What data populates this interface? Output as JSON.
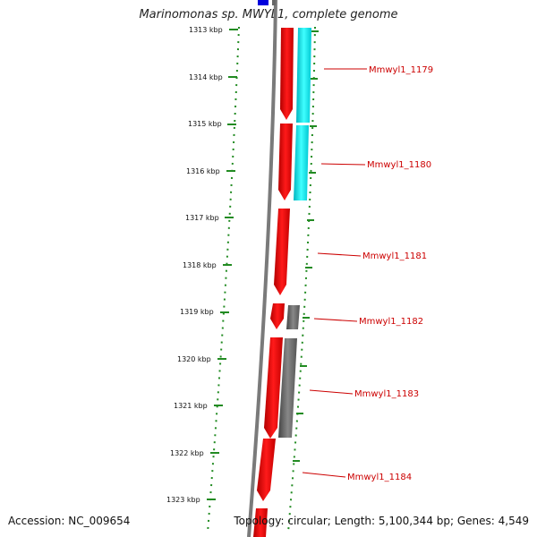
{
  "title": "Marinomonas sp. MWYL1, complete genome",
  "footer": {
    "accession": "Accession: NC_009654",
    "topology": "Topology: circular; Length: 5,100,344 bp; Genes: 4,549"
  },
  "ticks": [
    "1313 kbp",
    "1314 kbp",
    "1315 kbp",
    "1316 kbp",
    "1317 kbp",
    "1318 kbp",
    "1319 kbp",
    "1320 kbp",
    "1321 kbp",
    "1322 kbp",
    "1323 kbp"
  ],
  "genes": [
    {
      "label": "Mmwyl1_1179",
      "color": "#ff0000"
    },
    {
      "label": "Mmwyl1_1180",
      "color": "#ff0000"
    },
    {
      "label": "Mmwyl1_1181",
      "color": "#ff0000"
    },
    {
      "label": "Mmwyl1_1182",
      "color": "#ff0000"
    },
    {
      "label": "Mmwyl1_1183",
      "color": "#ff0000"
    },
    {
      "label": "Mmwyl1_1184",
      "color": "#ff0000"
    }
  ],
  "colors": {
    "forward_gene": "#ff0000",
    "reverse_gene_a": "#00e5ee",
    "reverse_gene_b": "#666666",
    "top_gene": "#0000dd",
    "backbone": "#888888",
    "ruler": "#228b22",
    "label": "#cc0000"
  }
}
